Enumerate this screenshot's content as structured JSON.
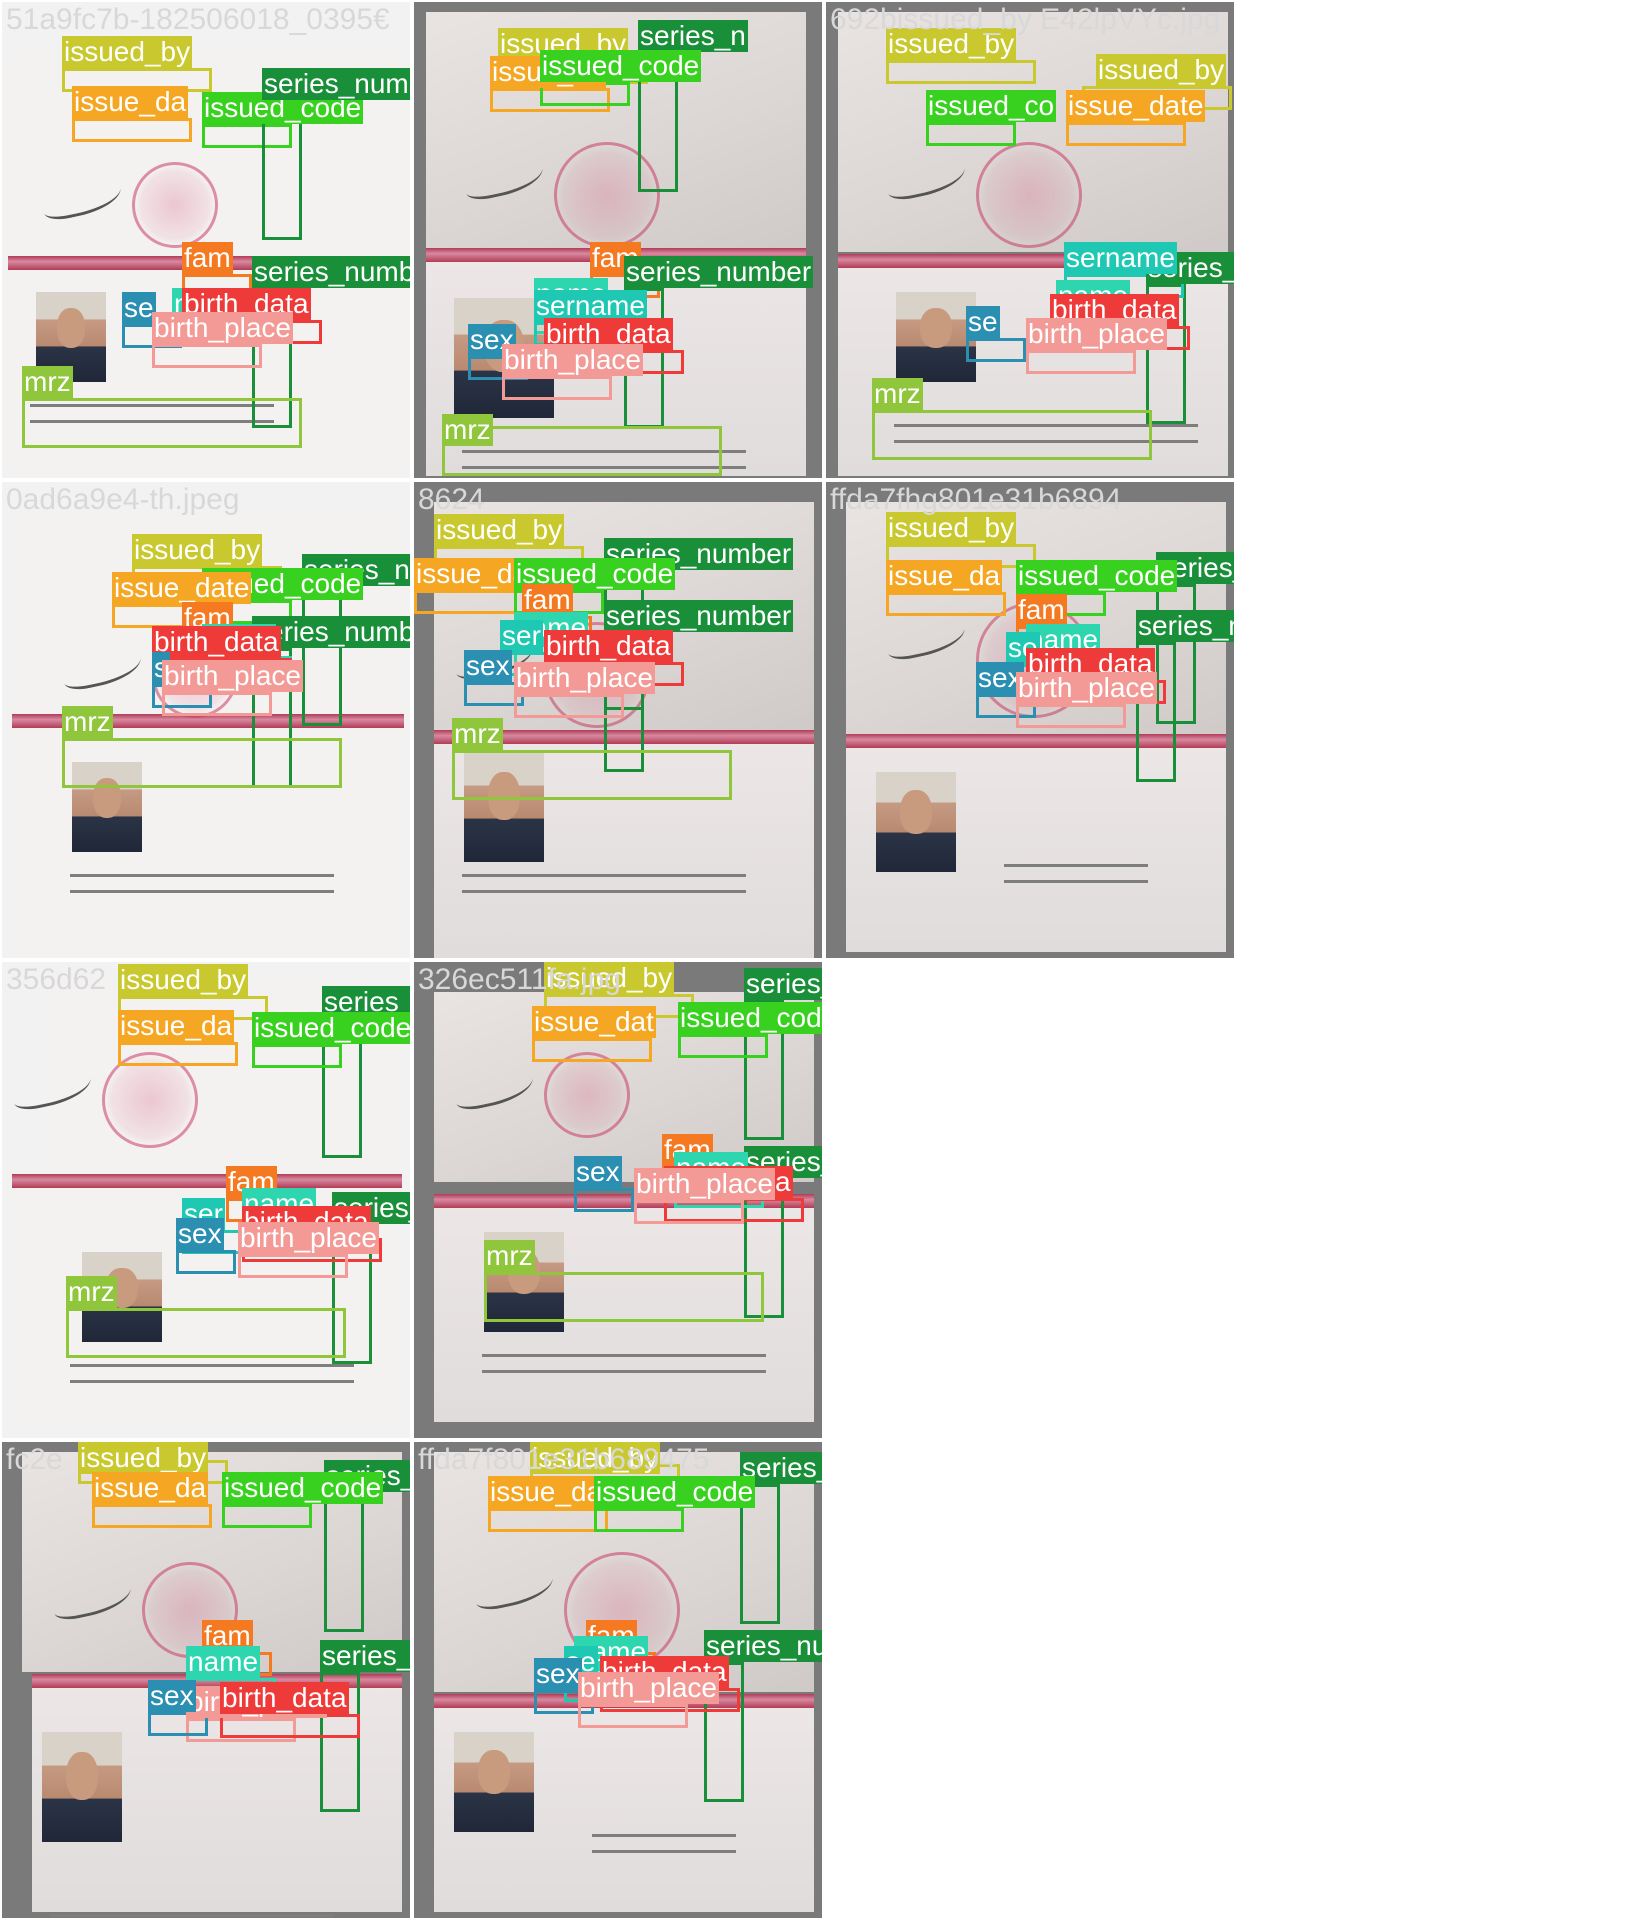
{
  "colors": {
    "issued_by": "#c9c82f",
    "issue_date": "#f5a623",
    "issued_code": "#39d11f",
    "series_number": "#1a8f3a",
    "fam": "#f47920",
    "name": "#2ed6b0",
    "sername": "#1ec8b3",
    "birth_data": "#ef3a3a",
    "birth_place": "#f39a96",
    "sex": "#2b8fb1",
    "mrz": "#8fc63b"
  },
  "cells": [
    {
      "filename": "51a9fc7b-182506018_0395€",
      "labels": [
        {
          "text": "issued_by",
          "cls": "issued_by"
        },
        {
          "text": "issue_da",
          "cls": "issue_date"
        },
        {
          "text": "issued_code",
          "cls": "issued_code"
        },
        {
          "text": "series_number",
          "cls": "series_number"
        },
        {
          "text": "fam",
          "cls": "fam"
        },
        {
          "text": "series_number",
          "cls": "series_number"
        },
        {
          "text": "name",
          "cls": "name"
        },
        {
          "text": "birth_data",
          "cls": "birth_data"
        },
        {
          "text": "se",
          "cls": "sex"
        },
        {
          "text": "birth_place",
          "cls": "birth_place"
        },
        {
          "text": "mrz",
          "cls": "mrz"
        }
      ]
    },
    {
      "filename": "",
      "labels": [
        {
          "text": "issued_by",
          "cls": "issued_by"
        },
        {
          "text": "series_n",
          "cls": "series_number"
        },
        {
          "text": "issue_da",
          "cls": "issue_date"
        },
        {
          "text": "issued_code",
          "cls": "issued_code"
        },
        {
          "text": "fam",
          "cls": "fam"
        },
        {
          "text": "series_number",
          "cls": "series_number"
        },
        {
          "text": "name",
          "cls": "name"
        },
        {
          "text": "sername",
          "cls": "sername"
        },
        {
          "text": "birth_data",
          "cls": "birth_data"
        },
        {
          "text": "sex",
          "cls": "sex"
        },
        {
          "text": "birth_place",
          "cls": "birth_place"
        },
        {
          "text": "mrz",
          "cls": "mrz"
        }
      ]
    },
    {
      "filename": "692bissued_by E42lpVYc.jpg",
      "labels": [
        {
          "text": "issued_by",
          "cls": "issued_by"
        },
        {
          "text": "issued_by",
          "cls": "issued_by"
        },
        {
          "text": "issued_co",
          "cls": "issued_code"
        },
        {
          "text": "issue_date",
          "cls": "issue_date"
        },
        {
          "text": "series_number",
          "cls": "series_number"
        },
        {
          "text": "sername",
          "cls": "sername"
        },
        {
          "text": "name",
          "cls": "name"
        },
        {
          "text": "birth_data",
          "cls": "birth_data"
        },
        {
          "text": "se",
          "cls": "sex"
        },
        {
          "text": "birth_place",
          "cls": "birth_place"
        },
        {
          "text": "mrz",
          "cls": "mrz"
        }
      ]
    },
    {
      "filename": "0ad6a9e4-th.jpeg",
      "labels": [
        {
          "text": "issued_by",
          "cls": "issued_by"
        },
        {
          "text": "series_num",
          "cls": "series_number"
        },
        {
          "text": "issued_code",
          "cls": "issued_code"
        },
        {
          "text": "issue_date",
          "cls": "issue_date"
        },
        {
          "text": "fam",
          "cls": "fam"
        },
        {
          "text": "series_number",
          "cls": "series_number"
        },
        {
          "text": "name",
          "cls": "name"
        },
        {
          "text": "birth_data",
          "cls": "birth_data"
        },
        {
          "text": "s",
          "cls": "sex"
        },
        {
          "text": "birth_place",
          "cls": "birth_place"
        },
        {
          "text": "mrz",
          "cls": "mrz"
        }
      ]
    },
    {
      "filename": "8624",
      "labels": [
        {
          "text": "issued_by",
          "cls": "issued_by"
        },
        {
          "text": "series_number",
          "cls": "series_number"
        },
        {
          "text": "issue_da",
          "cls": "issue_date"
        },
        {
          "text": "issued_code",
          "cls": "issued_code"
        },
        {
          "text": "fam",
          "cls": "fam"
        },
        {
          "text": "series_number",
          "cls": "series_number"
        },
        {
          "text": "name",
          "cls": "name"
        },
        {
          "text": "ser",
          "cls": "sername"
        },
        {
          "text": "birth_data",
          "cls": "birth_data"
        },
        {
          "text": "sex",
          "cls": "sex"
        },
        {
          "text": "birth_place",
          "cls": "birth_place"
        },
        {
          "text": "mrz",
          "cls": "mrz"
        }
      ]
    },
    {
      "filename": "ffda7fhg801e31b6894",
      "labels": [
        {
          "text": "issued_by",
          "cls": "issued_by"
        },
        {
          "text": "series_number",
          "cls": "series_number"
        },
        {
          "text": "issue_da",
          "cls": "issue_date"
        },
        {
          "text": "issued_code",
          "cls": "issued_code"
        },
        {
          "text": "fam",
          "cls": "fam"
        },
        {
          "text": "series_number",
          "cls": "series_number"
        },
        {
          "text": "name",
          "cls": "name"
        },
        {
          "text": "se",
          "cls": "sername"
        },
        {
          "text": "birth_data",
          "cls": "birth_data"
        },
        {
          "text": "sex",
          "cls": "sex"
        },
        {
          "text": "birth_place",
          "cls": "birth_place"
        }
      ]
    },
    {
      "filename": "356d62",
      "labels": [
        {
          "text": "issued_by",
          "cls": "issued_by"
        },
        {
          "text": "series_numbe",
          "cls": "series_number"
        },
        {
          "text": "issue_da",
          "cls": "issue_date"
        },
        {
          "text": "issued_code",
          "cls": "issued_code"
        },
        {
          "text": "fam",
          "cls": "fam"
        },
        {
          "text": "series_number",
          "cls": "series_number"
        },
        {
          "text": "name",
          "cls": "name"
        },
        {
          "text": "ser",
          "cls": "sername"
        },
        {
          "text": "birth_data",
          "cls": "birth_data"
        },
        {
          "text": "sex",
          "cls": "sex"
        },
        {
          "text": "birth_place",
          "cls": "birth_place"
        },
        {
          "text": "mrz",
          "cls": "mrz"
        }
      ]
    },
    {
      "filename": "326ec511fa.jpg",
      "labels": [
        {
          "text": "issued_by",
          "cls": "issued_by"
        },
        {
          "text": "series_number",
          "cls": "series_number"
        },
        {
          "text": "issue_dat",
          "cls": "issue_date"
        },
        {
          "text": "issued_code",
          "cls": "issued_code"
        },
        {
          "text": "fam",
          "cls": "fam"
        },
        {
          "text": "series_number",
          "cls": "series_number"
        },
        {
          "text": "name",
          "cls": "name"
        },
        {
          "text": "birth_data",
          "cls": "birth_data"
        },
        {
          "text": "sex",
          "cls": "sex"
        },
        {
          "text": "birth_place",
          "cls": "birth_place"
        },
        {
          "text": "mrz",
          "cls": "mrz"
        }
      ]
    },
    {
      "filename": "fc2e",
      "labels": [
        {
          "text": "issued_by",
          "cls": "issued_by"
        },
        {
          "text": "series_nu",
          "cls": "series_number"
        },
        {
          "text": "issue_da",
          "cls": "issue_date"
        },
        {
          "text": "issued_code",
          "cls": "issued_code"
        },
        {
          "text": "fam",
          "cls": "fam"
        },
        {
          "text": "name",
          "cls": "name"
        },
        {
          "text": "series_number",
          "cls": "series_number"
        },
        {
          "text": "birth_place",
          "cls": "birth_place"
        },
        {
          "text": "sex",
          "cls": "sex"
        },
        {
          "text": "birth_data",
          "cls": "birth_data"
        }
      ]
    },
    {
      "filename": "ffda7f801e31b689475",
      "labels": [
        {
          "text": "issued_by",
          "cls": "issued_by"
        },
        {
          "text": "series_number",
          "cls": "series_number"
        },
        {
          "text": "issue_da",
          "cls": "issue_date"
        },
        {
          "text": "issued_code",
          "cls": "issued_code"
        },
        {
          "text": "fam",
          "cls": "fam"
        },
        {
          "text": "series_number",
          "cls": "series_number"
        },
        {
          "text": "name",
          "cls": "name"
        },
        {
          "text": "se",
          "cls": "sername"
        },
        {
          "text": "birth_data",
          "cls": "birth_data"
        },
        {
          "text": "sex",
          "cls": "sex"
        },
        {
          "text": "birth_place",
          "cls": "birth_place"
        }
      ]
    }
  ]
}
